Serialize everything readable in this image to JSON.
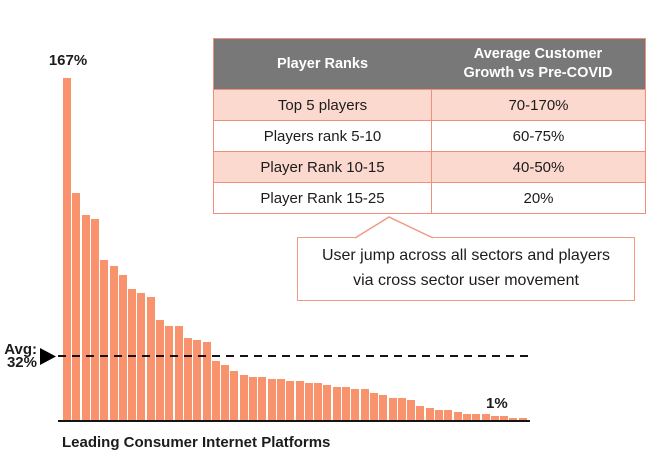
{
  "chart_data": {
    "type": "bar",
    "title": "",
    "xlabel": "Leading Consumer Internet Platforms",
    "ylabel": "",
    "unit": "%",
    "categories": [],
    "values": [
      167,
      111,
      100,
      98,
      78,
      75,
      71,
      64,
      62,
      60,
      49,
      46,
      46,
      40,
      39,
      38,
      29,
      27,
      24,
      22,
      21,
      21,
      20,
      20,
      19,
      19,
      18,
      18,
      17,
      16,
      16,
      15,
      15,
      13,
      12,
      11,
      11,
      10,
      7,
      6,
      5,
      5,
      4,
      3,
      3,
      3,
      2,
      2,
      1,
      1
    ],
    "ylim": [
      0,
      175
    ],
    "grid": false,
    "legend": false,
    "max_label": "167%",
    "min_label": "1%",
    "average_value": 32,
    "avg_label": "Avg:\n32%",
    "bar_color": "#F9936E",
    "average_line_style": "black dashed horizontal line at 32%"
  },
  "table": {
    "headers": [
      "Player Ranks",
      "Average Customer\nGrowth vs Pre-COVID"
    ],
    "rows": [
      [
        "Top 5 players",
        "70-170%"
      ],
      [
        "Players rank 5-10",
        "60-75%"
      ],
      [
        "Player Rank 10-15",
        "40-50%"
      ],
      [
        "Player Rank 15-25",
        "20%"
      ]
    ],
    "header_bg": "#787878",
    "row_alt_bg": "#FCD9CE",
    "border_color": "#F0907C"
  },
  "callout": {
    "text": "User jump across all sectors and players\nvia cross sector user movement",
    "border_color": "#F19A82"
  }
}
